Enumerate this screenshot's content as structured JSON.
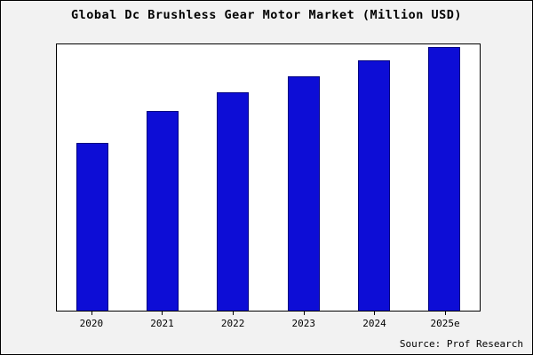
{
  "title": "Global Dc Brushless Gear Motor Market (Million USD)",
  "source": "Source: Prof Research",
  "colors": {
    "background": "#f2f2f2",
    "plot_background": "#ffffff",
    "bar_fill": "#0d0dd6",
    "bar_border": "#000080",
    "frame_border": "#000000"
  },
  "chart_data": {
    "type": "bar",
    "title": "Global Dc Brushless Gear Motor Market (Million USD)",
    "categories": [
      "2020",
      "2021",
      "2022",
      "2023",
      "2024",
      "2025e"
    ],
    "values": [
      63,
      75,
      82,
      88,
      94,
      99
    ],
    "xlabel": "",
    "ylabel": "",
    "ylim": [
      0,
      100
    ],
    "y_axis_labels_visible": false,
    "grid": false,
    "legend_position": "none",
    "source": "Source: Prof Research"
  }
}
